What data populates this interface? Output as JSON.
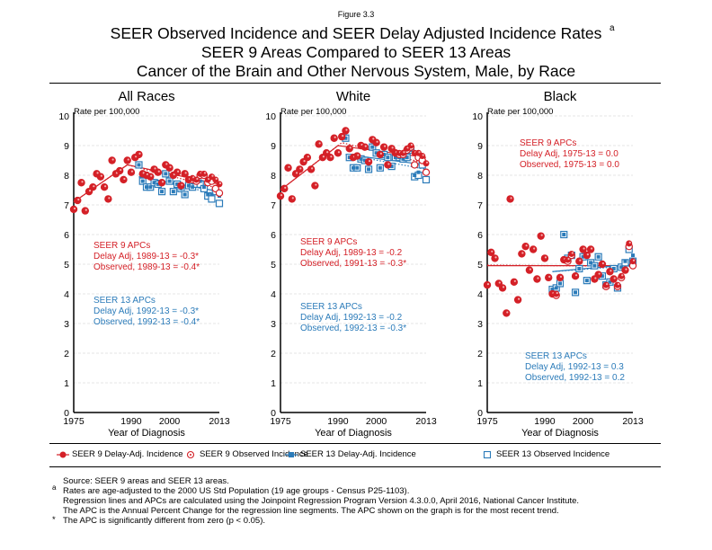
{
  "figure_label": "Figure 3.3",
  "title_lines": [
    "SEER Observed Incidence and SEER Delay Adjusted Incidence Rates",
    "SEER 9 Areas Compared to SEER 13 Areas",
    "Cancer of the Brain and Other Nervous System, Male, by Race"
  ],
  "title_superscript": "a",
  "legend": [
    "SEER 9 Delay-Adj. Incidence",
    "SEER 9 Observed Incidence",
    "SEER 13 Delay-Adj. Incidence",
    "SEER 13 Observed Incidence"
  ],
  "colors": {
    "seer9": "#d42027",
    "seer13": "#2b7bb9"
  },
  "footnotes": [
    "Source: SEER 9 areas and SEER 13 areas.",
    "Rates are age-adjusted to the 2000 US Std Population (19 age groups - Census P25-1103).",
    "Regression lines and APCs are calculated using the Joinpoint Regression Program Version 4.3.0.0, April 2016, National Cancer Institute.",
    "The APC is the Annual Percent Change for the regression line segments. The APC shown on the graph is for the most recent trend.",
    "The APC is significantly different from zero (p < 0.05)."
  ],
  "footnote_markers": [
    "a",
    "*"
  ],
  "chart_data": [
    {
      "type": "scatter",
      "title": "All Races",
      "ylabel": "Rate per 100,000",
      "xlabel": "Year of Diagnosis",
      "xlim": [
        1975,
        2013
      ],
      "ylim": [
        0,
        10
      ],
      "xticks": [
        1975,
        1990,
        2000,
        2013
      ],
      "yticks": [
        0,
        1,
        2,
        3,
        4,
        5,
        6,
        7,
        8,
        9,
        10
      ],
      "grid": true,
      "seer9_delay_adj": [
        6.85,
        7.15,
        7.75,
        6.8,
        7.45,
        7.6,
        8.05,
        7.95,
        7.6,
        7.2,
        8.5,
        8.05,
        8.15,
        7.85,
        8.5,
        8.1,
        8.6,
        8.7,
        8.05,
        8.0,
        7.95,
        8.2,
        8.1,
        7.75,
        8.35,
        8.25,
        8.0,
        8.1,
        7.65,
        8.05,
        7.85,
        7.9,
        7.85,
        8.05,
        8.05,
        7.85,
        7.95,
        7.85,
        7.7
      ],
      "seer9_observed": [
        6.85,
        7.15,
        7.75,
        6.8,
        7.45,
        7.6,
        8.05,
        7.95,
        7.6,
        7.2,
        8.5,
        8.05,
        8.15,
        7.85,
        8.5,
        8.1,
        8.6,
        8.7,
        8.05,
        8.0,
        7.95,
        8.2,
        8.1,
        7.75,
        8.35,
        8.25,
        8.0,
        8.1,
        7.65,
        8.05,
        7.85,
        7.85,
        7.8,
        8.0,
        8.0,
        7.75,
        7.8,
        7.55,
        7.4
      ],
      "seer13_delay_adj": [
        8.35,
        7.8,
        7.6,
        7.6,
        7.75,
        7.7,
        7.45,
        8.05,
        7.8,
        7.45,
        7.7,
        7.55,
        7.35,
        7.65,
        7.6,
        7.75,
        7.8,
        7.6,
        7.35,
        7.35,
        7.55,
        7.3
      ],
      "seer13_observed": [
        8.35,
        7.8,
        7.6,
        7.6,
        7.75,
        7.7,
        7.45,
        8.05,
        7.8,
        7.45,
        7.7,
        7.55,
        7.35,
        7.65,
        7.6,
        7.7,
        7.7,
        7.55,
        7.3,
        7.2,
        7.45,
        7.05
      ],
      "seer13_start": 1992,
      "fit9_delay": [
        [
          1975,
          7.1
        ],
        [
          1989,
          8.35
        ],
        [
          2013,
          7.7
        ]
      ],
      "fit9_obs": [
        [
          1975,
          7.1
        ],
        [
          1989,
          8.35
        ],
        [
          2013,
          7.55
        ]
      ],
      "fit13_delay": [
        [
          1992,
          7.95
        ],
        [
          2013,
          7.45
        ]
      ],
      "fit13_obs": [
        [
          1992,
          7.95
        ],
        [
          2013,
          7.35
        ]
      ],
      "apc9": {
        "head": "SEER 9 APCs",
        "delay": "Delay Adj, 1989-13 = -0.3*",
        "obs": "Observed, 1989-13 = -0.4*"
      },
      "apc13": {
        "head": "SEER 13 APCs",
        "delay": "Delay Adj, 1992-13 = -0.3*",
        "obs": "Observed, 1992-13 = -0.4*"
      }
    },
    {
      "type": "scatter",
      "title": "White",
      "ylabel": "Rate per 100,000",
      "xlabel": "Year of Diagnosis",
      "xlim": [
        1975,
        2013
      ],
      "ylim": [
        0,
        10
      ],
      "xticks": [
        1975,
        1990,
        2000,
        2013
      ],
      "yticks": [
        0,
        1,
        2,
        3,
        4,
        5,
        6,
        7,
        8,
        9,
        10
      ],
      "grid": true,
      "seer9_delay_adj": [
        7.3,
        7.55,
        8.25,
        7.2,
        8.05,
        8.2,
        8.45,
        8.6,
        8.2,
        7.65,
        9.05,
        8.6,
        8.75,
        8.6,
        9.25,
        8.75,
        9.3,
        9.5,
        8.9,
        8.6,
        8.65,
        9.0,
        8.95,
        8.45,
        9.2,
        9.1,
        8.7,
        8.95,
        8.35,
        8.9,
        8.75,
        8.75,
        8.75,
        8.9,
        9.0,
        8.75,
        8.75,
        8.65,
        8.4
      ],
      "seer9_observed": [
        7.3,
        7.55,
        8.25,
        7.2,
        8.05,
        8.2,
        8.45,
        8.6,
        8.2,
        7.65,
        9.05,
        8.6,
        8.75,
        8.6,
        9.25,
        8.75,
        9.3,
        9.5,
        8.9,
        8.6,
        8.65,
        9.0,
        8.95,
        8.45,
        9.2,
        9.1,
        8.7,
        8.95,
        8.35,
        8.9,
        8.75,
        8.7,
        8.7,
        8.85,
        8.95,
        8.35,
        8.6,
        8.5,
        8.1
      ],
      "seer13_delay_adj": [
        9.25,
        8.6,
        8.25,
        8.25,
        8.55,
        8.5,
        8.2,
        8.95,
        8.75,
        8.25,
        8.7,
        8.6,
        8.3,
        8.6,
        8.6,
        8.55,
        8.6,
        8.85,
        8.0,
        8.1,
        8.5,
        8.1
      ],
      "seer13_observed": [
        9.25,
        8.6,
        8.25,
        8.25,
        8.55,
        8.5,
        8.2,
        8.95,
        8.75,
        8.25,
        8.7,
        8.6,
        8.3,
        8.6,
        8.6,
        8.55,
        8.6,
        8.85,
        7.95,
        8.0,
        8.35,
        7.85
      ],
      "seer13_start": 1992,
      "fit9_delay": [
        [
          1975,
          7.5
        ],
        [
          1990,
          9.0
        ],
        [
          2013,
          8.6
        ]
      ],
      "fit9_obs": [
        [
          1975,
          7.5
        ],
        [
          1991,
          9.1
        ],
        [
          2013,
          8.4
        ]
      ],
      "fit13_delay": [
        [
          1992,
          8.7
        ],
        [
          2013,
          8.35
        ]
      ],
      "fit13_obs": [
        [
          1992,
          8.7
        ],
        [
          2013,
          8.2
        ]
      ],
      "apc9": {
        "head": "SEER 9 APCs",
        "delay": "Delay Adj, 1989-13 = -0.2",
        "obs": "Observed, 1991-13 = -0.3*"
      },
      "apc13": {
        "head": "SEER 13 APCs",
        "delay": "Delay Adj, 1992-13 = -0.2",
        "obs": "Observed, 1992-13 = -0.3*"
      }
    },
    {
      "type": "scatter",
      "title": "Black",
      "ylabel": "Rate per 100,000",
      "xlabel": "Year of Diagnosis",
      "xlim": [
        1975,
        2013
      ],
      "ylim": [
        0,
        10
      ],
      "xticks": [
        1975,
        1990,
        2000,
        2013
      ],
      "yticks": [
        0,
        1,
        2,
        3,
        4,
        5,
        6,
        7,
        8,
        9,
        10
      ],
      "grid": true,
      "seer9_delay_adj": [
        4.3,
        5.4,
        5.2,
        4.35,
        4.2,
        3.35,
        7.2,
        4.4,
        3.8,
        5.35,
        5.6,
        4.8,
        5.5,
        4.5,
        5.95,
        5.2,
        4.55,
        4.0,
        4.0,
        4.55,
        5.15,
        5.15,
        5.35,
        4.6,
        5.1,
        5.5,
        5.3,
        5.5,
        4.5,
        4.65,
        5.0,
        4.3,
        4.75,
        4.5,
        4.3,
        4.6,
        4.8,
        5.7,
        5.1
      ],
      "seer9_observed": [
        4.3,
        5.4,
        5.2,
        4.35,
        4.2,
        3.35,
        7.2,
        4.4,
        3.8,
        5.35,
        5.6,
        4.8,
        5.5,
        4.5,
        5.95,
        5.2,
        4.55,
        4.0,
        3.95,
        4.55,
        5.15,
        5.1,
        5.3,
        4.6,
        5.1,
        5.5,
        5.3,
        5.5,
        4.5,
        4.65,
        5.0,
        4.25,
        4.75,
        4.5,
        4.25,
        4.55,
        4.8,
        5.6,
        4.95
      ],
      "seer13_delay_adj": [
        4.15,
        4.2,
        4.35,
        6.0,
        5.2,
        5.3,
        4.05,
        4.85,
        5.25,
        4.45,
        5.05,
        4.95,
        5.25,
        4.6,
        4.3,
        4.4,
        4.85,
        4.2,
        4.9,
        5.1,
        5.6,
        5.3
      ],
      "seer13_observed": [
        4.15,
        4.2,
        4.35,
        6.0,
        5.2,
        5.3,
        4.05,
        4.85,
        5.25,
        4.45,
        5.05,
        4.95,
        5.25,
        4.6,
        4.3,
        4.4,
        4.85,
        4.2,
        4.9,
        5.05,
        5.5,
        5.1
      ],
      "seer13_start": 1992,
      "fit9_delay": [
        [
          1975,
          4.95
        ],
        [
          2013,
          4.95
        ]
      ],
      "fit9_obs": [
        [
          1975,
          4.97
        ],
        [
          2013,
          4.93
        ]
      ],
      "fit13_delay": [
        [
          1992,
          4.75
        ],
        [
          2013,
          5.0
        ]
      ],
      "fit13_obs": [
        [
          1992,
          4.75
        ],
        [
          2013,
          4.95
        ]
      ],
      "apc9": {
        "head": "SEER 9 APCs",
        "delay": "Delay Adj, 1975-13 = 0.0",
        "obs": "Observed, 1975-13 = 0.0"
      },
      "apc13": {
        "head": "SEER 13 APCs",
        "delay": "Delay Adj, 1992-13 = 0.3",
        "obs": "Observed, 1992-13 = 0.2"
      }
    }
  ]
}
